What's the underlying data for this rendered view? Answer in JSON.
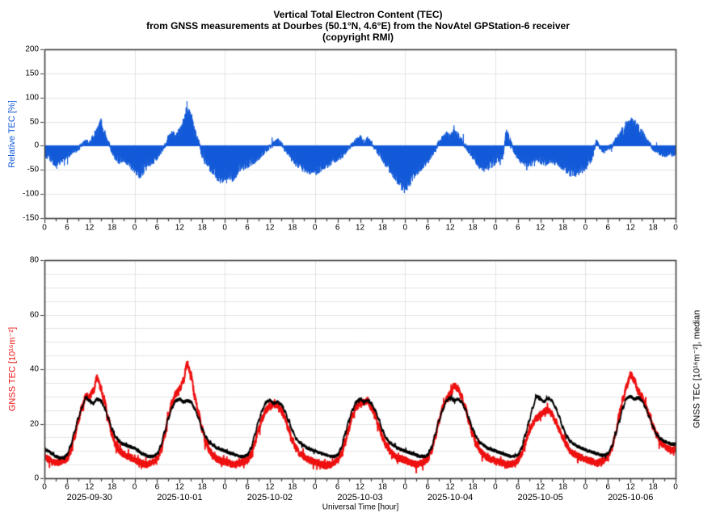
{
  "title": {
    "line1": "Vertical Total Electron Content (TEC)",
    "line2": "from GNSS measurements at Dourbes (50.1°N, 4.6°E) from the NovAtel GPStation-6 receiver",
    "line3": "(copyright RMI)"
  },
  "colors": {
    "blue": "#1159d8",
    "red": "#ee0f0f",
    "black": "#000000",
    "grid": "#e3e3e3",
    "frame": "#3f3f3f"
  },
  "axes": {
    "hour_tick_labels": [
      "0",
      "6",
      "12",
      "18",
      "0",
      "6",
      "12",
      "18",
      "0",
      "6",
      "12",
      "18",
      "0",
      "6",
      "12",
      "18",
      "0",
      "6",
      "12",
      "18",
      "0",
      "6",
      "12",
      "18",
      "0",
      "6",
      "12",
      "18",
      "0"
    ],
    "hour_tick_step": 6,
    "minor_tick_step": 3,
    "dates": [
      "2025-09-30",
      "2025-10-01",
      "2025-10-02",
      "2025-10-03",
      "2025-10-04",
      "2025-10-05",
      "2025-10-06"
    ],
    "xlabel": "Universal Time [hour]",
    "x_range_hours": [
      0,
      168
    ]
  },
  "chart_data": [
    {
      "type": "area",
      "name": "relative-tec",
      "ylabel": "Relative TEC [%]",
      "ylim": [
        -150,
        200
      ],
      "ytick_labels": [
        "-150",
        "-100",
        "-50",
        "0",
        "50",
        "100",
        "150",
        "200"
      ],
      "grid_step": 50,
      "baseline": 0,
      "color": "#1159d8",
      "x_hours_step": 1,
      "values": [
        -20,
        -15,
        -30,
        -35,
        -30,
        -25,
        -20,
        -15,
        -10,
        -5,
        2,
        8,
        5,
        15,
        30,
        45,
        25,
        5,
        -12,
        -22,
        -28,
        -25,
        -30,
        -38,
        -45,
        -55,
        -50,
        -40,
        -32,
        -28,
        -22,
        -12,
        0,
        15,
        22,
        18,
        28,
        45,
        68,
        55,
        30,
        8,
        -18,
        -32,
        -42,
        -50,
        -58,
        -62,
        -58,
        -65,
        -60,
        -52,
        -45,
        -40,
        -36,
        -32,
        -28,
        -22,
        -15,
        -8,
        -2,
        5,
        10,
        4,
        -6,
        -15,
        -25,
        -32,
        -38,
        -42,
        -45,
        -48,
        -50,
        -45,
        -40,
        -36,
        -32,
        -28,
        -25,
        -20,
        -12,
        -5,
        2,
        10,
        15,
        8,
        12,
        5,
        -5,
        -15,
        -25,
        -35,
        -45,
        -55,
        -65,
        -75,
        -80,
        -70,
        -60,
        -50,
        -42,
        -35,
        -28,
        -18,
        -8,
        5,
        15,
        22,
        18,
        25,
        20,
        10,
        0,
        -10,
        -20,
        -30,
        -38,
        -42,
        -40,
        -35,
        -30,
        -25,
        -20,
        27,
        10,
        -10,
        -20,
        -28,
        -32,
        -35,
        -30,
        -25,
        -28,
        -32,
        -30,
        -28,
        -30,
        -35,
        -40,
        -45,
        -50,
        -52,
        -48,
        -45,
        -40,
        -30,
        -20,
        8,
        -5,
        -10,
        -5,
        0,
        10,
        20,
        30,
        40,
        46,
        42,
        35,
        25,
        15,
        5,
        -5,
        -10,
        -14,
        -16,
        -15,
        -15
      ]
    },
    {
      "type": "line",
      "name": "gnss-tec",
      "ylabel": "GNSS TEC [10¹⁶m⁻²]",
      "ylabel_right": "GNSS TEC [10¹⁶m⁻²], median",
      "xlabel": "Universal Time [hour]",
      "ylim": [
        0,
        80
      ],
      "ytick_labels": [
        "0",
        "20",
        "40",
        "60",
        "80"
      ],
      "grid_minor_step": 5,
      "x_hours_step": 1,
      "series": [
        {
          "name": "GNSS TEC measured",
          "color": "#ee0f0f",
          "values": [
            8.5,
            7,
            6,
            5.5,
            6,
            6.5,
            7,
            10,
            15,
            21,
            26,
            30,
            30,
            32,
            37,
            33,
            28,
            22,
            16,
            12,
            10,
            9,
            8,
            7.5,
            7,
            6,
            5.5,
            5,
            5.5,
            6,
            7,
            10,
            16,
            23,
            28,
            31,
            33,
            36,
            42,
            38,
            30,
            24,
            18,
            13,
            10,
            8,
            7,
            6.5,
            6,
            5.5,
            5,
            5,
            5.5,
            6,
            6.5,
            9,
            13,
            18,
            22,
            25,
            26.5,
            27,
            27,
            25,
            22,
            18,
            14,
            11,
            9,
            8,
            7,
            6.5,
            6,
            5.5,
            5,
            4.5,
            5,
            5.5,
            6.5,
            9,
            13,
            18,
            23,
            26,
            27.5,
            28,
            28.5,
            26,
            23,
            19,
            15,
            12,
            10,
            8.5,
            7.5,
            7,
            6.5,
            6,
            5.5,
            5,
            5.5,
            6,
            7,
            10,
            15,
            21,
            26,
            29,
            31,
            34,
            33,
            30,
            26,
            21,
            16,
            12.5,
            10,
            8.5,
            7.5,
            7,
            6.5,
            6,
            5.5,
            5,
            5,
            5.5,
            6.5,
            9,
            13,
            17,
            20,
            22,
            23,
            24.5,
            25,
            23.5,
            21,
            18,
            15,
            12,
            10,
            9,
            8,
            7.5,
            7,
            6.5,
            6,
            5.5,
            6,
            6.5,
            8,
            11,
            16,
            23,
            29,
            34,
            38,
            36,
            32,
            30,
            27,
            23,
            19,
            16,
            13,
            12,
            11,
            10.5
          ]
        },
        {
          "name": "median",
          "color": "#000000",
          "values": [
            11,
            10,
            9,
            8,
            7.5,
            7.5,
            8.5,
            12,
            17,
            22,
            26,
            29.5,
            28.5,
            27.5,
            29,
            28.5,
            26,
            22,
            18,
            15,
            13.5,
            12.5,
            12,
            11.5,
            11,
            10,
            9,
            8.5,
            8,
            8,
            9,
            12,
            17,
            22,
            26,
            28.5,
            29,
            28,
            28.5,
            28,
            25.5,
            22,
            18,
            15,
            13,
            12,
            11,
            10.5,
            10,
            9.5,
            9,
            8.5,
            8,
            8,
            8.5,
            11,
            16,
            21,
            25,
            28,
            28.5,
            27.5,
            28,
            27,
            24.5,
            21,
            17.5,
            14.5,
            13,
            12,
            11,
            10.5,
            10,
            9.5,
            9,
            8.5,
            8,
            8,
            8.5,
            11,
            16,
            21,
            25,
            28,
            29,
            28,
            28.5,
            27.5,
            25,
            21.5,
            17.5,
            14.5,
            13,
            12,
            11,
            10.5,
            10,
            9.5,
            9,
            8.5,
            8,
            8,
            8.5,
            11,
            16,
            21,
            25,
            28.5,
            29.5,
            28.5,
            29,
            28,
            25.5,
            22,
            18,
            15,
            13,
            12,
            11,
            10.5,
            10,
            9.5,
            9,
            8.5,
            8,
            8,
            8.5,
            11,
            16,
            21,
            26,
            30,
            29,
            28,
            29.5,
            28.5,
            26,
            22.5,
            18.5,
            15.5,
            13.5,
            12.5,
            11.5,
            11,
            10.5,
            10,
            9.5,
            9,
            8.5,
            8.5,
            9,
            11.5,
            16,
            21,
            26,
            29.5,
            30,
            29,
            29.5,
            28.5,
            26,
            22.5,
            19,
            16,
            14.5,
            13.5,
            13,
            12.5
          ]
        }
      ]
    }
  ]
}
